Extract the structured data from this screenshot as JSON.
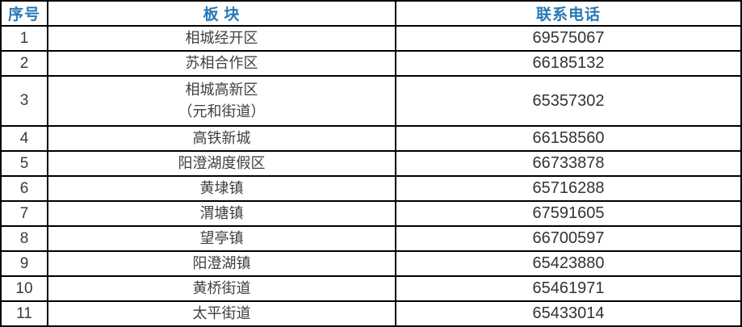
{
  "colors": {
    "header_text": "#2878b5",
    "body_text": "#3f3f3f",
    "phone_text": "#333333",
    "border": "#000000",
    "background": "#ffffff"
  },
  "table": {
    "headers": {
      "no": "序号",
      "district": "板 块",
      "phone": "联系电话"
    },
    "rows": [
      {
        "no": "1",
        "district": "相城经开区",
        "phone": "69575067"
      },
      {
        "no": "2",
        "district": "苏相合作区",
        "phone": "66185132"
      },
      {
        "no": "3",
        "district": "相城高新区\n（元和街道）",
        "phone": "65357302"
      },
      {
        "no": "4",
        "district": "高铁新城",
        "phone": "66158560"
      },
      {
        "no": "5",
        "district": "阳澄湖度假区",
        "phone": "66733878"
      },
      {
        "no": "6",
        "district": "黄埭镇",
        "phone": "65716288"
      },
      {
        "no": "7",
        "district": "渭塘镇",
        "phone": "67591605"
      },
      {
        "no": "8",
        "district": "望亭镇",
        "phone": "66700597"
      },
      {
        "no": "9",
        "district": "阳澄湖镇",
        "phone": "65423880"
      },
      {
        "no": "10",
        "district": "黄桥街道",
        "phone": "65461971"
      },
      {
        "no": "11",
        "district": "太平街道",
        "phone": "65433014"
      }
    ]
  }
}
